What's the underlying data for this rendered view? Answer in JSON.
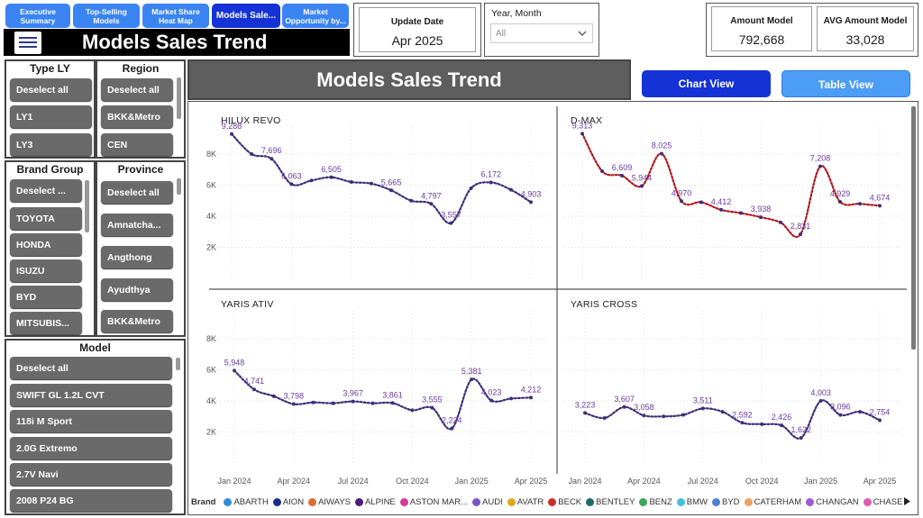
{
  "nav": {
    "tabs": [
      {
        "label": "Executive Summary",
        "active": false
      },
      {
        "label": "Top-Selling Models",
        "active": false
      },
      {
        "label": "Market Share Heat Map",
        "active": false
      },
      {
        "label": "Models Sale...",
        "active": true
      },
      {
        "label": "Market Opportunity by...",
        "active": false
      }
    ]
  },
  "header": {
    "title": "Models Sales Trend"
  },
  "update": {
    "label": "Update Date",
    "value": "Apr 2025"
  },
  "period_filter": {
    "label": "Year, Month",
    "value": "All"
  },
  "kpis": [
    {
      "label": "Amount Model",
      "value": "792,668"
    },
    {
      "label": "AVG Amount Model",
      "value": "33,028"
    }
  ],
  "slicers": {
    "type_ly": {
      "title": "Type LY",
      "items": [
        "Deselect all",
        "LY1",
        "LY3"
      ]
    },
    "region": {
      "title": "Region",
      "items": [
        "Deselect all",
        "BKK&Metro",
        "CEN"
      ]
    },
    "brand_group": {
      "title": "Brand Group",
      "items": [
        "Deselect ...",
        "TOYOTA",
        "HONDA",
        "ISUZU",
        "BYD",
        "MITSUBIS..."
      ]
    },
    "province": {
      "title": "Province",
      "items": [
        "Deselect all",
        "Amnatcha...",
        "Angthong",
        "Ayudthya",
        "BKK&Metro"
      ]
    },
    "model": {
      "title": "Model",
      "items": [
        "Deselect all",
        "SWIFT GL 1.2L CVT",
        "118i M Sport",
        "2.0G Extremo",
        "2.7V Navi",
        "2008 P24 BG"
      ]
    }
  },
  "chart_section": {
    "title": "Models Sales Trend",
    "chart_view_label": "Chart View",
    "table_view_label": "Table View"
  },
  "colors": {
    "primary_blue": "#1532d6",
    "light_blue": "#3a84f2",
    "line_purple": "#3d2f7a",
    "label_purple": "#6a3aa0",
    "dmax_red": "#b0191e"
  },
  "chart_data": [
    {
      "type": "line",
      "title": "HILUX REVO",
      "x_ticks": [
        "Jan 2024",
        "Apr 2024",
        "Jul 2024",
        "Oct 2024",
        "Jan 2025",
        "Apr 2025"
      ],
      "y_ticks": [
        "2K",
        "4K",
        "6K",
        "8K"
      ],
      "ylim": [
        0,
        10000
      ],
      "x": [
        "Jan 2024",
        "Feb 2024",
        "Mar 2024",
        "Apr 2024",
        "May 2024",
        "Jun 2024",
        "Jul 2024",
        "Aug 2024",
        "Sep 2024",
        "Oct 2024",
        "Nov 2024",
        "Dec 2024",
        "Jan 2025",
        "Feb 2025",
        "Mar 2025",
        "Apr 2025"
      ],
      "values": [
        9288,
        8000,
        7696,
        6063,
        6300,
        6505,
        6200,
        6100,
        5665,
        5000,
        4797,
        3557,
        5800,
        6172,
        5700,
        4903
      ],
      "data_labels": [
        "9,288",
        null,
        "7,696",
        "6,063",
        null,
        "6,505",
        null,
        null,
        "5,665",
        null,
        "4,797",
        "3,557",
        null,
        "6,172",
        null,
        "4,903"
      ]
    },
    {
      "type": "line",
      "title": "D-MAX",
      "x_ticks": [],
      "y_ticks": [],
      "ylim": [
        0,
        10000
      ],
      "x": [
        "Jan 2024",
        "Feb 2024",
        "Mar 2024",
        "Apr 2024",
        "May 2024",
        "Jun 2024",
        "Jul 2024",
        "Aug 2024",
        "Sep 2024",
        "Oct 2024",
        "Nov 2024",
        "Dec 2024",
        "Jan 2025",
        "Feb 2025",
        "Mar 2025",
        "Apr 2025"
      ],
      "values": [
        9313,
        6900,
        6609,
        5944,
        8025,
        4970,
        4900,
        4412,
        4200,
        3938,
        3600,
        2831,
        7208,
        4929,
        4800,
        4674
      ],
      "data_labels": [
        "9,313",
        null,
        "6,609",
        "5,944",
        "8,025",
        "4,970",
        null,
        "4,412",
        null,
        "3,938",
        null,
        "2,831",
        "7,208",
        "4,929",
        null,
        "4,674"
      ]
    },
    {
      "type": "line",
      "title": "YARIS ATIV",
      "x_ticks": [
        "Jan 2024",
        "Apr 2024",
        "Jul 2024",
        "Oct 2024",
        "Jan 2025",
        "Apr 2025"
      ],
      "y_ticks": [
        "2K",
        "4K",
        "6K",
        "8K"
      ],
      "ylim": [
        0,
        10000
      ],
      "x": [
        "Jan 2024",
        "Feb 2024",
        "Mar 2024",
        "Apr 2024",
        "May 2024",
        "Jun 2024",
        "Jul 2024",
        "Aug 2024",
        "Sep 2024",
        "Oct 2024",
        "Nov 2024",
        "Dec 2024",
        "Jan 2025",
        "Feb 2025",
        "Mar 2025",
        "Apr 2025"
      ],
      "values": [
        5948,
        4741,
        4300,
        3798,
        3900,
        3850,
        3967,
        3850,
        3861,
        3400,
        3555,
        2224,
        5381,
        4023,
        4150,
        4212
      ],
      "data_labels": [
        "5,948",
        "4,741",
        null,
        "3,798",
        null,
        null,
        "3,967",
        null,
        "3,861",
        null,
        "3,555",
        "2,224",
        "5,381",
        "4,023",
        null,
        "4,212"
      ]
    },
    {
      "type": "line",
      "title": "YARIS CROSS",
      "x_ticks": [
        "Jan 2024",
        "Apr 2024",
        "Jul 2024",
        "Oct 2024",
        "Jan 2025",
        "Apr 2025"
      ],
      "y_ticks": [],
      "ylim": [
        0,
        10000
      ],
      "x": [
        "Jan 2024",
        "Feb 2024",
        "Mar 2024",
        "Apr 2024",
        "May 2024",
        "Jun 2024",
        "Jul 2024",
        "Aug 2024",
        "Sep 2024",
        "Oct 2024",
        "Nov 2024",
        "Dec 2024",
        "Jan 2025",
        "Feb 2025",
        "Mar 2025",
        "Apr 2025"
      ],
      "values": [
        3223,
        2900,
        3607,
        3058,
        3000,
        3100,
        3511,
        3300,
        2592,
        2500,
        2426,
        1622,
        4003,
        3096,
        3300,
        2754
      ],
      "data_labels": [
        "3,223",
        null,
        "3,607",
        "3,058",
        null,
        null,
        "3,511",
        null,
        "2,592",
        null,
        "2,426",
        "1,622",
        "4,003",
        "3,096",
        null,
        "2,754"
      ]
    }
  ],
  "legend": {
    "title": "Brand",
    "items": [
      {
        "name": "ABARTH",
        "color": "#2e8fd8"
      },
      {
        "name": "AION",
        "color": "#1b2f8a"
      },
      {
        "name": "AIWAYS",
        "color": "#e06b35"
      },
      {
        "name": "ALPINE",
        "color": "#4a1c7a"
      },
      {
        "name": "ASTON MAR...",
        "color": "#d6389a"
      },
      {
        "name": "AUDI",
        "color": "#7a52c7"
      },
      {
        "name": "AVATR",
        "color": "#e0a81a"
      },
      {
        "name": "BECK",
        "color": "#c9302c"
      },
      {
        "name": "BENTLEY",
        "color": "#1f6b6b"
      },
      {
        "name": "BENZ",
        "color": "#3aa856"
      },
      {
        "name": "BMW",
        "color": "#43c0e0"
      },
      {
        "name": "BYD",
        "color": "#4a7fd8"
      },
      {
        "name": "CATERHAM",
        "color": "#f0a060"
      },
      {
        "name": "CHANGAN",
        "color": "#a05ad0"
      },
      {
        "name": "CHASE",
        "color": "#e05ab0"
      }
    ]
  }
}
